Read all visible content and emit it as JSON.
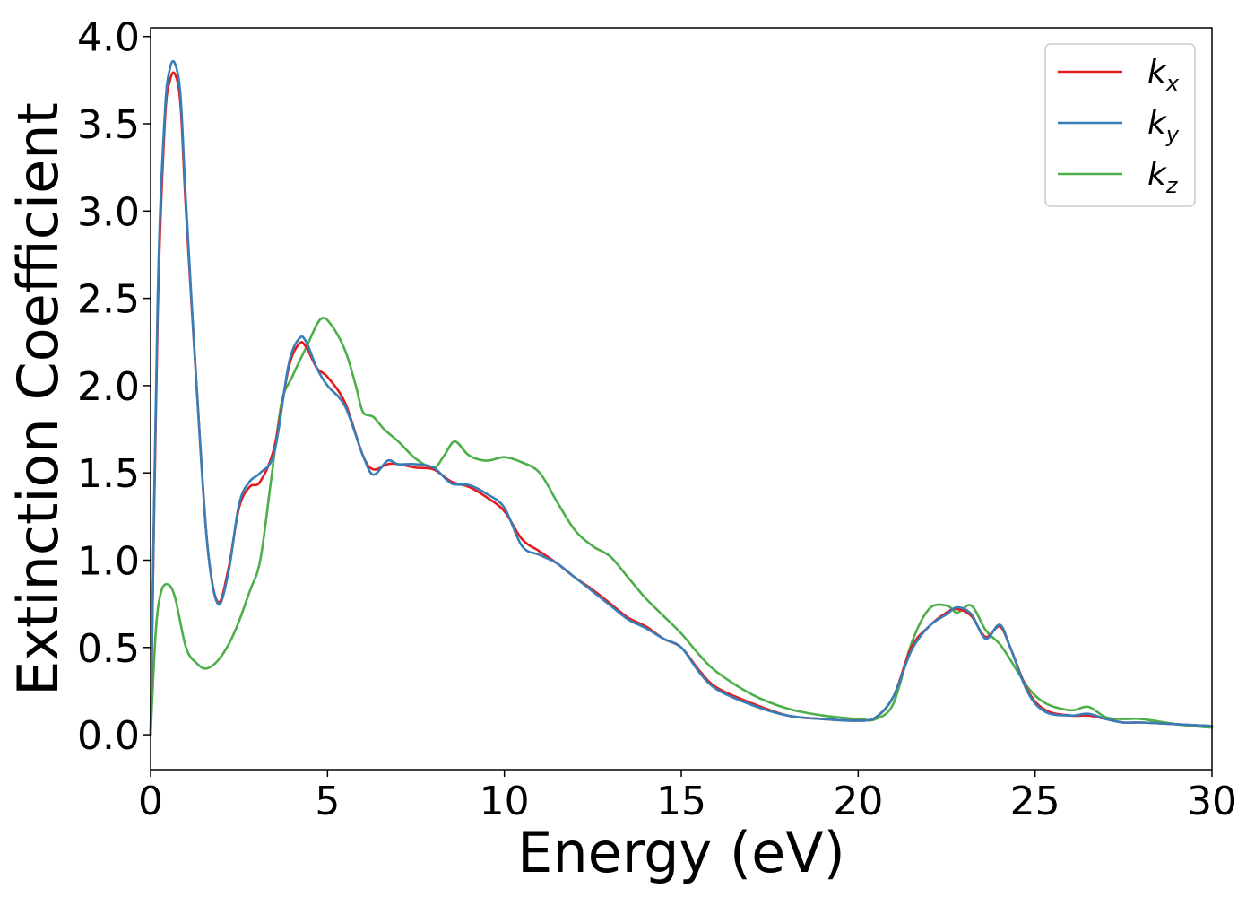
{
  "chart_data": {
    "type": "line",
    "xlabel": "Energy (eV)",
    "ylabel": "Extinction Coefficient",
    "xlim": [
      0,
      30
    ],
    "ylim": [
      -0.2,
      4.05
    ],
    "xticks": [
      "0",
      "5",
      "10",
      "15",
      "20",
      "25",
      "30"
    ],
    "yticks": [
      "0.0",
      "0.5",
      "1.0",
      "1.5",
      "2.0",
      "2.5",
      "3.0",
      "3.5",
      "4.0"
    ],
    "grid": false,
    "legend_position": "top-right",
    "series": [
      {
        "name": "k",
        "subscript": "x",
        "color": "#e41a1c",
        "x": [
          0,
          0.2,
          0.4,
          0.55,
          0.7,
          0.85,
          1.0,
          1.3,
          1.6,
          1.9,
          2.2,
          2.5,
          2.8,
          3.1,
          3.5,
          3.9,
          4.2,
          4.4,
          4.7,
          5.0,
          5.5,
          6.0,
          6.3,
          6.7,
          7.0,
          7.5,
          8.0,
          8.5,
          9.0,
          9.5,
          10.0,
          10.5,
          11.0,
          11.5,
          12.0,
          12.5,
          13.0,
          13.5,
          14.0,
          14.5,
          15.0,
          15.5,
          16.0,
          17.0,
          18.0,
          19.0,
          20.0,
          20.5,
          21.0,
          21.5,
          22.0,
          22.5,
          22.8,
          23.2,
          23.6,
          24.0,
          24.3,
          24.8,
          25.3,
          26.0,
          26.5,
          27.0,
          27.5,
          28.0,
          29.0,
          30.0
        ],
        "y": [
          0.0,
          2.4,
          3.5,
          3.75,
          3.78,
          3.6,
          3.0,
          2.0,
          1.1,
          0.76,
          0.95,
          1.3,
          1.42,
          1.45,
          1.65,
          2.1,
          2.24,
          2.22,
          2.1,
          2.05,
          1.9,
          1.6,
          1.52,
          1.55,
          1.55,
          1.53,
          1.52,
          1.45,
          1.42,
          1.36,
          1.28,
          1.12,
          1.05,
          0.98,
          0.9,
          0.83,
          0.75,
          0.67,
          0.62,
          0.55,
          0.5,
          0.37,
          0.27,
          0.18,
          0.11,
          0.09,
          0.08,
          0.1,
          0.22,
          0.5,
          0.62,
          0.7,
          0.72,
          0.68,
          0.56,
          0.62,
          0.5,
          0.25,
          0.14,
          0.11,
          0.11,
          0.09,
          0.07,
          0.07,
          0.06,
          0.05
        ]
      },
      {
        "name": "k",
        "subscript": "y",
        "color": "#377eb8",
        "x": [
          0,
          0.2,
          0.4,
          0.55,
          0.7,
          0.85,
          1.0,
          1.3,
          1.6,
          1.9,
          2.2,
          2.5,
          2.8,
          3.1,
          3.5,
          3.9,
          4.2,
          4.4,
          4.7,
          5.0,
          5.5,
          6.0,
          6.3,
          6.7,
          7.0,
          7.5,
          8.0,
          8.5,
          9.0,
          9.5,
          10.0,
          10.5,
          11.0,
          11.5,
          12.0,
          12.5,
          13.0,
          13.5,
          14.0,
          14.5,
          15.0,
          15.5,
          16.0,
          17.0,
          18.0,
          19.0,
          20.0,
          20.5,
          21.0,
          21.5,
          22.0,
          22.5,
          22.8,
          23.2,
          23.6,
          24.0,
          24.3,
          24.8,
          25.3,
          26.0,
          26.5,
          27.0,
          27.5,
          28.0,
          29.0,
          30.0
        ],
        "y": [
          0.0,
          2.5,
          3.55,
          3.82,
          3.84,
          3.65,
          3.05,
          2.0,
          1.1,
          0.75,
          0.93,
          1.32,
          1.45,
          1.5,
          1.62,
          2.12,
          2.27,
          2.25,
          2.1,
          2.0,
          1.88,
          1.6,
          1.49,
          1.57,
          1.55,
          1.55,
          1.53,
          1.44,
          1.43,
          1.38,
          1.3,
          1.08,
          1.03,
          0.98,
          0.9,
          0.82,
          0.74,
          0.66,
          0.61,
          0.55,
          0.5,
          0.36,
          0.26,
          0.17,
          0.11,
          0.09,
          0.08,
          0.1,
          0.22,
          0.48,
          0.62,
          0.69,
          0.73,
          0.69,
          0.55,
          0.63,
          0.5,
          0.24,
          0.13,
          0.11,
          0.12,
          0.09,
          0.07,
          0.07,
          0.06,
          0.05
        ]
      },
      {
        "name": "k",
        "subscript": "z",
        "color": "#4daf4a",
        "x": [
          0,
          0.15,
          0.3,
          0.5,
          0.7,
          1.0,
          1.3,
          1.6,
          2.0,
          2.4,
          2.8,
          3.1,
          3.4,
          3.7,
          4.0,
          4.4,
          4.8,
          5.1,
          5.5,
          5.8,
          6.0,
          6.3,
          6.6,
          7.0,
          7.5,
          8.0,
          8.3,
          8.6,
          9.0,
          9.5,
          10.0,
          10.5,
          11.0,
          11.5,
          12.0,
          12.5,
          13.0,
          13.5,
          14.0,
          14.5,
          15.0,
          15.5,
          16.0,
          17.0,
          18.0,
          19.0,
          20.0,
          20.5,
          21.0,
          21.5,
          22.0,
          22.5,
          22.8,
          23.2,
          23.6,
          24.0,
          24.3,
          24.8,
          25.3,
          26.0,
          26.5,
          27.0,
          27.5,
          28.0,
          29.0,
          30.0
        ],
        "y": [
          0.0,
          0.6,
          0.82,
          0.86,
          0.78,
          0.5,
          0.41,
          0.38,
          0.45,
          0.6,
          0.82,
          1.0,
          1.45,
          1.9,
          2.05,
          2.22,
          2.38,
          2.35,
          2.2,
          2.0,
          1.85,
          1.82,
          1.75,
          1.68,
          1.58,
          1.53,
          1.6,
          1.68,
          1.6,
          1.57,
          1.59,
          1.56,
          1.5,
          1.33,
          1.17,
          1.08,
          1.02,
          0.9,
          0.78,
          0.68,
          0.58,
          0.46,
          0.36,
          0.23,
          0.15,
          0.11,
          0.09,
          0.09,
          0.18,
          0.52,
          0.72,
          0.74,
          0.7,
          0.74,
          0.6,
          0.52,
          0.43,
          0.27,
          0.18,
          0.14,
          0.16,
          0.1,
          0.09,
          0.09,
          0.06,
          0.04
        ]
      }
    ]
  }
}
